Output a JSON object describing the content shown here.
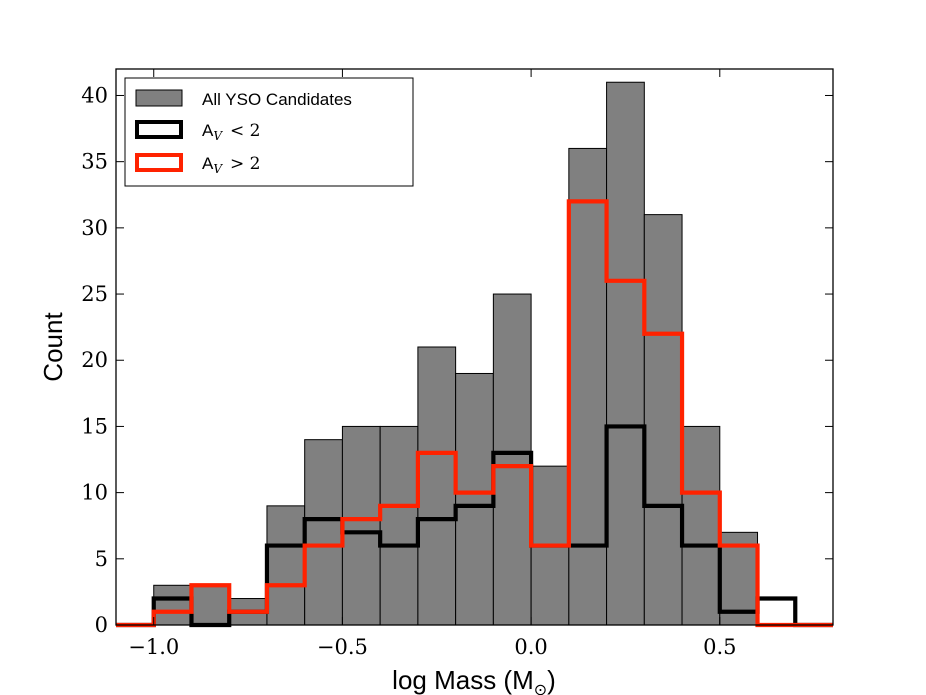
{
  "chart_data": {
    "type": "histogram",
    "xlabel": "log Mass (M",
    "xlabel_sub": "⊙",
    "xlabel_close": ")",
    "ylabel": "Count",
    "xlim": [
      -1.1,
      0.8
    ],
    "ylim": [
      0,
      42
    ],
    "xticks": [
      -1.0,
      -0.5,
      0.0,
      0.5
    ],
    "xtick_labels": [
      "−1.0",
      "−0.5",
      "0.0",
      "0.5"
    ],
    "yticks": [
      0,
      5,
      10,
      15,
      20,
      25,
      30,
      35,
      40
    ],
    "ytick_labels": [
      "0",
      "5",
      "10",
      "15",
      "20",
      "25",
      "30",
      "35",
      "40"
    ],
    "bin_edges": [
      -1.1,
      -1.0,
      -0.9,
      -0.8,
      -0.7,
      -0.6,
      -0.5,
      -0.4,
      -0.3,
      -0.2,
      -0.1,
      0.0,
      0.1,
      0.2,
      0.3,
      0.4,
      0.5,
      0.6,
      0.7,
      0.8
    ],
    "series": [
      {
        "name": "All YSO Candidates",
        "style": "filled",
        "color": "#808080",
        "values": [
          0,
          3,
          3,
          2,
          9,
          14,
          15,
          15,
          21,
          19,
          25,
          12,
          36,
          41,
          31,
          15,
          7,
          0,
          0
        ]
      },
      {
        "name": "A_V < 2",
        "style": "step",
        "color": "#000000",
        "values": [
          0,
          2,
          0,
          1,
          6,
          8,
          7,
          6,
          8,
          9,
          13,
          6,
          6,
          15,
          9,
          6,
          1,
          2,
          0
        ]
      },
      {
        "name": "A_V > 2",
        "style": "step",
        "color": "#ff2200",
        "values": [
          0,
          1,
          3,
          1,
          3,
          6,
          8,
          9,
          13,
          10,
          12,
          6,
          32,
          26,
          22,
          10,
          6,
          0,
          0
        ]
      }
    ],
    "legend": {
      "placement": "top-left",
      "entries": [
        {
          "text": "All YSO Candidates"
        },
        {
          "text": "A",
          "sub": "V",
          "rel": "< 2"
        },
        {
          "text": "A",
          "sub": "V",
          "rel": "> 2"
        }
      ]
    }
  }
}
